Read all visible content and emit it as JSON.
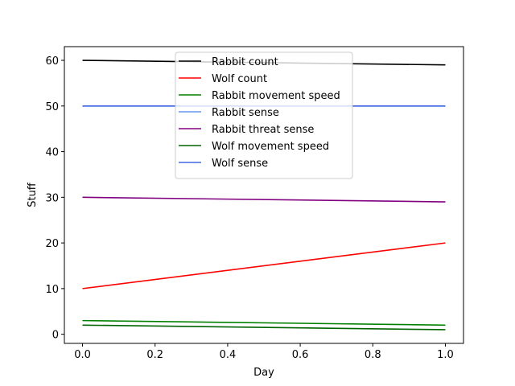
{
  "chart_data": {
    "type": "line",
    "title": "",
    "xlabel": "Day",
    "ylabel": "Stuff",
    "xlim": [
      -0.05,
      1.05
    ],
    "ylim": [
      -2,
      63
    ],
    "xticks": [
      "0.0",
      "0.2",
      "0.4",
      "0.6",
      "0.8",
      "1.0"
    ],
    "yticks": [
      "0",
      "10",
      "20",
      "30",
      "40",
      "50",
      "60"
    ],
    "grid": false,
    "legend_position": "upper center",
    "x": [
      0,
      1
    ],
    "series": [
      {
        "name": "Rabbit count",
        "color": "#000000",
        "values": [
          60,
          59
        ]
      },
      {
        "name": "Wolf count",
        "color": "#ff0000",
        "values": [
          10,
          20
        ]
      },
      {
        "name": "Rabbit movement speed",
        "color": "#008000",
        "values": [
          3,
          2
        ]
      },
      {
        "name": "Rabbit sense",
        "color": "#6495ed",
        "values": [
          50,
          50
        ]
      },
      {
        "name": "Rabbit threat sense",
        "color": "#800080",
        "values": [
          30,
          29
        ]
      },
      {
        "name": "Wolf movement speed",
        "color": "#006400",
        "values": [
          2,
          1
        ]
      },
      {
        "name": "Wolf sense",
        "color": "#4169e1",
        "values": [
          50,
          50
        ]
      }
    ]
  }
}
